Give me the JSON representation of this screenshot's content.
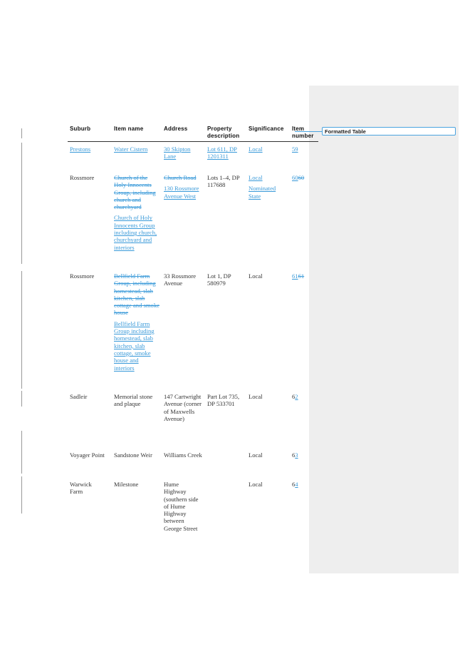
{
  "comment": {
    "label": "Formatted Table"
  },
  "table": {
    "headers": {
      "suburb": "Suburb",
      "item_name": "Item name",
      "address": "Address",
      "property_1": "Property",
      "property_2": "description",
      "significance": "Significance",
      "item_1": "Item",
      "item_2": "number"
    },
    "rows": [
      {
        "suburb": "Prestons",
        "item_name": "Water Cistern",
        "address": "30 Skipton Lane",
        "property": "Lot 611, DP 1201311",
        "significance": "Local",
        "item_number": "59"
      },
      {
        "suburb": "Rossmore",
        "item_name_deleted": "Church of the Holy Innocents Group, including church and churchyard",
        "item_name_inserted": "Church of Holy Innocents Group including church, churchyard and interiors",
        "address_deleted": "Church Road",
        "address_inserted": "130 Rossmore Avenue West",
        "property": "Lots 1–4, DP 117688",
        "significance_1": "Local",
        "significance_2": "Nominated State",
        "item_number_a": "60",
        "item_number_b": "60"
      },
      {
        "suburb": "Rossmore",
        "item_name_deleted": "Bellfield Farm Group, including homestead, slab kitchen, slab cottage and smoke house",
        "item_name_inserted": "Bellfield Farm Group including homestead, slab kitchen, slab cottage, smoke house and interiors",
        "address": "33 Rossmore Avenue",
        "property": "Lot 1, DP 580979",
        "significance": "Local",
        "item_number_a": "61",
        "item_number_b": "61"
      },
      {
        "suburb": "Sadleir",
        "item_name": "Memorial stone and plaque",
        "address": "147 Cartwright Avenue (corner of Maxwells Avenue)",
        "property": "Part Lot 735, DP 533701",
        "significance": "Local",
        "item_number_a": "6",
        "item_number_b": "2"
      },
      {
        "suburb": "Voyager Point",
        "item_name": "Sandstone Weir",
        "address": "Williams Creek",
        "property": "",
        "significance": "Local",
        "item_number_a": "6",
        "item_number_b": "3"
      },
      {
        "suburb": "Warwick Farm",
        "item_name": "Milestone",
        "address": "Hume Highway (southern side of Hume Highway between George Street",
        "property": "",
        "significance": "Local",
        "item_number_a": "6",
        "item_number_b": "4"
      }
    ]
  },
  "colors": {
    "tracked_change": "#3a9ad9",
    "comment_pane": "#eeeeee",
    "text": "#333333"
  }
}
